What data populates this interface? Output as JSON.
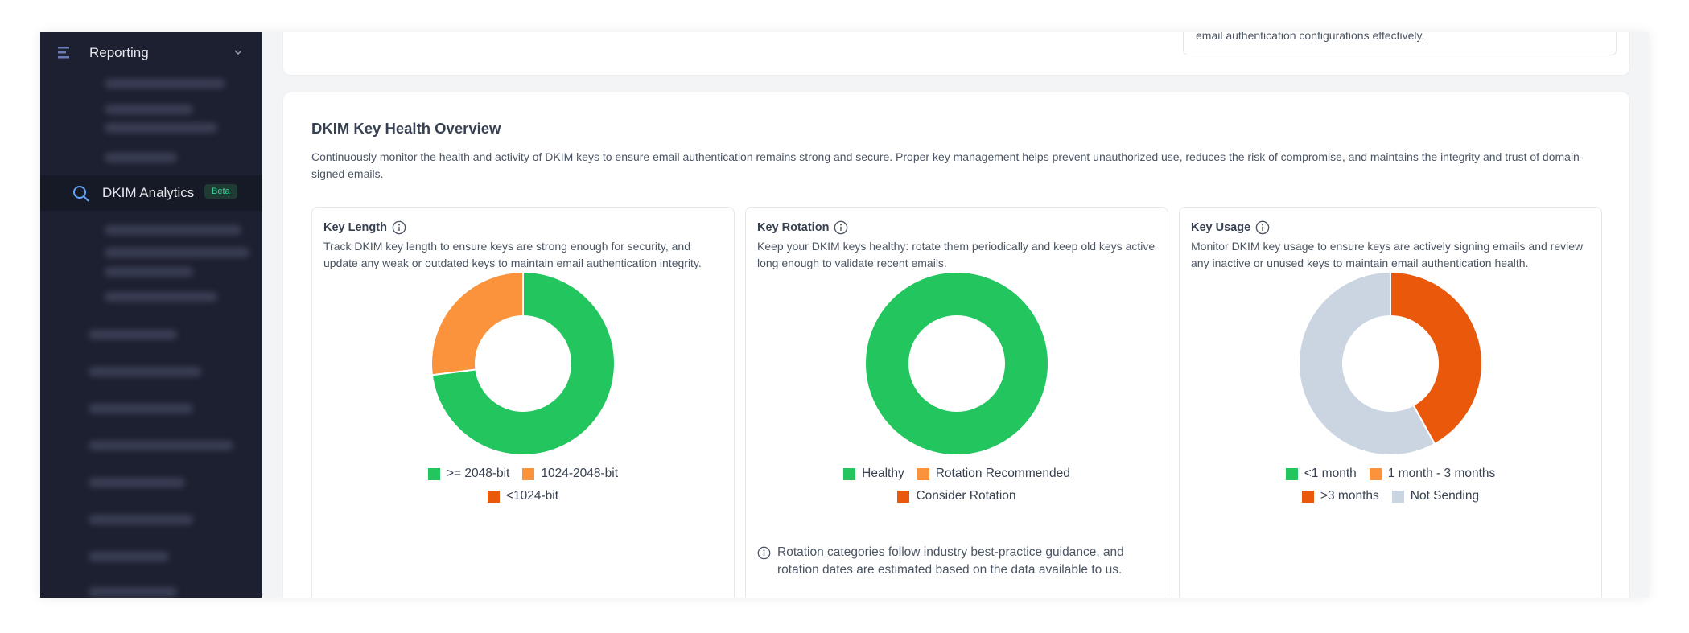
{
  "sidebar": {
    "reporting": "Reporting",
    "active_item": "DKIM Analytics",
    "badge": "Beta"
  },
  "top_card": {
    "text": "email authentication configurations effectively."
  },
  "section": {
    "title": "DKIM Key Health Overview",
    "description": "Continuously monitor the health and activity of DKIM keys to ensure email authentication remains strong and secure. Proper key management helps prevent unauthorized use, reduces the risk of compromise, and maintains the integrity and trust of domain-signed emails."
  },
  "chart_data": [
    {
      "type": "pie",
      "title": "Key Length",
      "subtitle": "Track DKIM key length to ensure keys are strong enough for security, and update any weak or outdated keys to maintain email authentication integrity.",
      "categories": [
        ">= 2048-bit",
        "1024-2048-bit",
        "<1024-bit"
      ],
      "values": [
        73,
        27,
        0
      ],
      "colors": [
        "#22c55e",
        "#fb923c",
        "#ea580c"
      ]
    },
    {
      "type": "pie",
      "title": "Key Rotation",
      "subtitle": "Keep your DKIM keys healthy: rotate them periodically and keep old keys active long enough to validate recent emails.",
      "categories": [
        "Healthy",
        "Rotation Recommended",
        "Consider Rotation"
      ],
      "values": [
        100,
        0,
        0
      ],
      "colors": [
        "#22c55e",
        "#fb923c",
        "#ea580c"
      ],
      "footnote": "Rotation categories follow industry best-practice guidance, and rotation dates are estimated based on the data available to us."
    },
    {
      "type": "pie",
      "title": "Key Usage",
      "subtitle": "Monitor DKIM key usage to ensure keys are actively signing emails and review any inactive or unused keys to maintain email authentication health.",
      "categories": [
        "<1 month",
        "1 month - 3 months",
        ">3 months",
        "Not Sending"
      ],
      "values": [
        0,
        0,
        42,
        58
      ],
      "colors": [
        "#22c55e",
        "#fb923c",
        "#ea580c",
        "#cbd5e1"
      ]
    }
  ]
}
